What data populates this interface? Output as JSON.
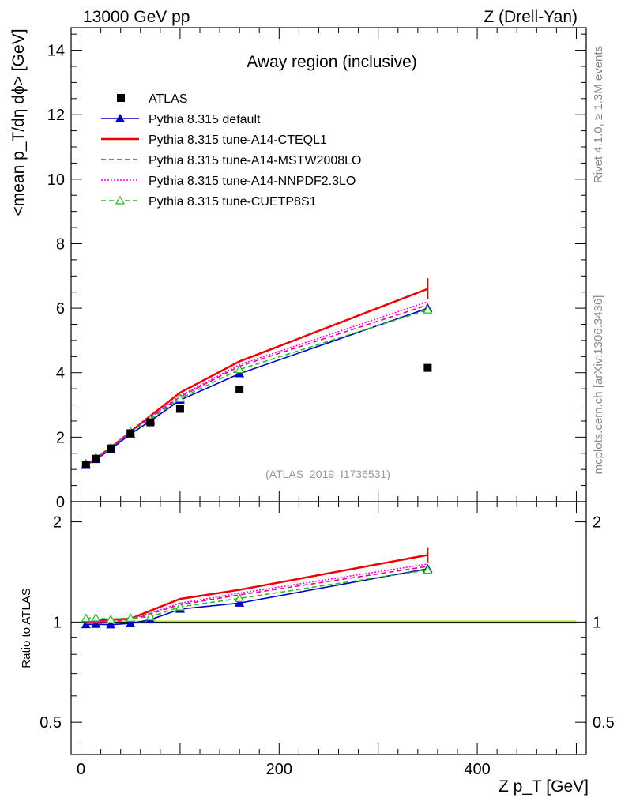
{
  "header": {
    "left": "13000 GeV pp",
    "right": "Z (Drell-Yan)"
  },
  "side_labels": {
    "rivet": "Rivet 4.1.0, ≥ 1.3M events",
    "mcplots": "mcplots.cern.ch [arXiv:1306.3436]"
  },
  "chart_data": {
    "type": "line",
    "title": "Away region (inclusive)",
    "analysis_id": "(ATLAS_2019_I1736531)",
    "ylabel_main": "<mean p_T/dη dϕ> [GeV]",
    "ylabel_ratio": "Ratio to ATLAS",
    "xlabel": "Z p_T [GeV]",
    "xlim": [
      -10,
      510
    ],
    "ylim_main": [
      0,
      14.7
    ],
    "ylim_ratio": [
      0.4,
      2.3
    ],
    "x_ticks": [
      "0",
      "200",
      "400"
    ],
    "y_ticks_main": [
      "0",
      "2",
      "4",
      "6",
      "8",
      "10",
      "12",
      "14"
    ],
    "y_ticks_ratio": [
      "0.5",
      "1",
      "2"
    ],
    "x": [
      5,
      15,
      30,
      50,
      70,
      100,
      160,
      350
    ],
    "data": {
      "name": "ATLAS",
      "values": [
        1.15,
        1.33,
        1.65,
        2.12,
        2.46,
        2.88,
        3.48,
        4.15
      ]
    },
    "series": [
      {
        "name": "Pythia 8.315 default",
        "color": "#0000cc",
        "style": "solid-triangle",
        "values": [
          1.13,
          1.31,
          1.62,
          2.1,
          2.5,
          3.15,
          3.97,
          6.0
        ]
      },
      {
        "name": "Pythia 8.315 tune-A14-CTEQL1",
        "color": "#ee0000",
        "style": "solid",
        "values": [
          1.14,
          1.34,
          1.68,
          2.17,
          2.66,
          3.38,
          4.35,
          6.6
        ]
      },
      {
        "name": "Pythia 8.315 tune-A14-MSTW2008LO",
        "color": "#ee0088",
        "style": "dashed",
        "values": [
          1.14,
          1.33,
          1.66,
          2.15,
          2.6,
          3.25,
          4.2,
          6.1
        ]
      },
      {
        "name": "Pythia 8.315 tune-A14-NNPDF2.3LO",
        "color": "#ee00ee",
        "style": "dotted",
        "values": [
          1.14,
          1.33,
          1.67,
          2.16,
          2.62,
          3.28,
          4.25,
          6.2
        ]
      },
      {
        "name": "Pythia 8.315 tune-CUETP8S1",
        "color": "#22bb22",
        "style": "dashed-triangle",
        "values": [
          1.18,
          1.37,
          1.68,
          2.18,
          2.55,
          3.2,
          4.1,
          5.95
        ]
      }
    ],
    "legend_position": "top-left"
  }
}
